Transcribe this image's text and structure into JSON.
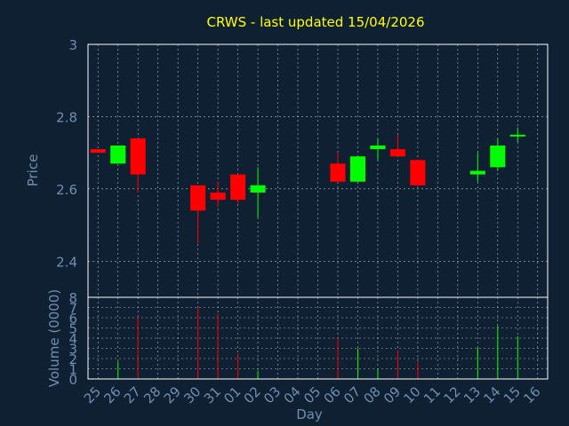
{
  "chart_data": {
    "type": "candlestick",
    "title": "CRWS - last updated 15/04/2026",
    "xlabel": "Day",
    "price_panel": {
      "ylabel": "Price",
      "ylim": [
        2.3,
        3.0
      ],
      "yticks": [
        "3",
        "2.8",
        "2.6",
        "2.4"
      ],
      "ytick_values": [
        3.0,
        2.8,
        2.6,
        2.4
      ]
    },
    "volume_panel": {
      "ylabel": "Volume (0000)",
      "ylim": [
        0,
        8
      ],
      "yticks": [
        "8",
        "7",
        "6",
        "5",
        "4",
        "3",
        "2",
        "1",
        "0"
      ],
      "ytick_values": [
        8,
        7,
        6,
        5,
        4,
        3,
        2,
        1,
        0
      ]
    },
    "x_tick_labels": [
      "25",
      "26",
      "27",
      "28",
      "29",
      "30",
      "31",
      "01",
      "02",
      "03",
      "04",
      "05",
      "06",
      "07",
      "08",
      "09",
      "10",
      "11",
      "12",
      "13",
      "14",
      "15",
      "16"
    ],
    "grid": true,
    "colors": {
      "background": "#0f2033",
      "plot_background": "#0f2033",
      "title": "#ffff00",
      "axis_text": "#6e8fb0",
      "axis_line": "#ffffff",
      "grid": "#ffffff",
      "up": "#00ff00",
      "down": "#ff0000"
    },
    "candles": [
      {
        "day": "25",
        "open": 2.71,
        "high": 2.71,
        "low": 2.7,
        "close": 2.7,
        "volume": 0.0
      },
      {
        "day": "26",
        "open": 2.67,
        "high": 2.72,
        "low": 2.67,
        "close": 2.72,
        "volume": 1.7
      },
      {
        "day": "27",
        "open": 2.74,
        "high": 2.74,
        "low": 2.59,
        "close": 2.64,
        "volume": 6.1
      },
      {
        "day": "30",
        "open": 2.61,
        "high": 2.61,
        "low": 2.45,
        "close": 2.54,
        "volume": 7.0
      },
      {
        "day": "31",
        "open": 2.59,
        "high": 2.62,
        "low": 2.55,
        "close": 2.57,
        "volume": 6.4
      },
      {
        "day": "01",
        "open": 2.64,
        "high": 2.64,
        "low": 2.56,
        "close": 2.57,
        "volume": 2.5
      },
      {
        "day": "02",
        "open": 2.59,
        "high": 2.66,
        "low": 2.52,
        "close": 2.61,
        "volume": 0.8
      },
      {
        "day": "06",
        "open": 2.67,
        "high": 2.7,
        "low": 2.62,
        "close": 2.62,
        "volume": 4.0
      },
      {
        "day": "07",
        "open": 2.62,
        "high": 2.69,
        "low": 2.62,
        "close": 2.69,
        "volume": 3.0
      },
      {
        "day": "08",
        "open": 2.71,
        "high": 2.74,
        "low": 2.68,
        "close": 2.72,
        "volume": 1.0
      },
      {
        "day": "09",
        "open": 2.71,
        "high": 2.75,
        "low": 2.69,
        "close": 2.69,
        "volume": 2.8
      },
      {
        "day": "10",
        "open": 2.68,
        "high": 2.68,
        "low": 2.61,
        "close": 2.61,
        "volume": 1.7
      },
      {
        "day": "13",
        "open": 2.64,
        "high": 2.7,
        "low": 2.62,
        "close": 2.65,
        "volume": 3.1
      },
      {
        "day": "14",
        "open": 2.66,
        "high": 2.74,
        "low": 2.65,
        "close": 2.72,
        "volume": 5.2
      },
      {
        "day": "15",
        "open": 2.75,
        "high": 2.77,
        "low": 2.73,
        "close": 2.75,
        "volume": 4.2
      }
    ]
  }
}
